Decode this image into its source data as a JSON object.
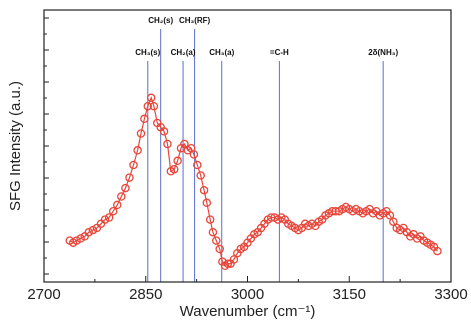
{
  "chart_data": {
    "type": "scatter",
    "xlabel": "Wavenumber (cm⁻¹)",
    "ylabel": "SFG Intensity (a.u.)",
    "xlim": [
      2700,
      3300
    ],
    "ylim": [
      0,
      1
    ],
    "x_ticks": [
      2700,
      2850,
      3000,
      3150,
      3300
    ],
    "grid": false,
    "colors": {
      "marker": "#e8463a",
      "line": "#e8463a",
      "guide": "#5b6fc9",
      "axis": "#222222"
    },
    "reference_lines": [
      {
        "label": "CH₃(s)",
        "x": 2853,
        "row": 2
      },
      {
        "label": "CH₂(s)",
        "x": 2872,
        "row": 1
      },
      {
        "label": "CH₂(a)",
        "x": 2905,
        "row": 2
      },
      {
        "label": "CH₃(RF)",
        "x": 2922,
        "row": 1
      },
      {
        "label": "CH₃(a)",
        "x": 2962,
        "row": 2
      },
      {
        "label": "=C-H",
        "x": 3047,
        "row": 2
      },
      {
        "label": "2δ(NH₃)",
        "x": 3200,
        "row": 2
      }
    ],
    "series": [
      {
        "x": [
          2738,
          2743,
          2748,
          2754,
          2760,
          2766,
          2772,
          2778,
          2784,
          2790,
          2796,
          2802,
          2808,
          2814,
          2820,
          2826,
          2832,
          2838,
          2843,
          2848,
          2853,
          2858,
          2862,
          2867,
          2872,
          2877,
          2882,
          2887,
          2892,
          2897,
          2902,
          2907,
          2912,
          2917,
          2921,
          2926,
          2931,
          2936,
          2940,
          2945,
          2949,
          2954,
          2959,
          2963,
          2967,
          2971,
          2975,
          2980,
          2985,
          2990,
          2995,
          3000,
          3005,
          3010,
          3015,
          3020,
          3025,
          3030,
          3035,
          3040,
          3045,
          3050,
          3055,
          3060,
          3065,
          3070,
          3075,
          3080,
          3085,
          3090,
          3095,
          3100,
          3105,
          3110,
          3115,
          3120,
          3125,
          3130,
          3135,
          3140,
          3145,
          3150,
          3155,
          3160,
          3165,
          3170,
          3175,
          3180,
          3185,
          3190,
          3195,
          3200,
          3205,
          3210,
          3215,
          3220,
          3225,
          3230,
          3235,
          3240,
          3245,
          3250,
          3255,
          3260,
          3265,
          3270,
          3275,
          3280
        ],
        "y": [
          0.14,
          0.13,
          0.14,
          0.15,
          0.16,
          0.18,
          0.19,
          0.2,
          0.22,
          0.24,
          0.25,
          0.28,
          0.31,
          0.35,
          0.39,
          0.44,
          0.5,
          0.57,
          0.65,
          0.72,
          0.78,
          0.82,
          0.78,
          0.7,
          0.68,
          0.66,
          0.6,
          0.47,
          0.48,
          0.52,
          0.58,
          0.6,
          0.57,
          0.58,
          0.55,
          0.5,
          0.45,
          0.38,
          0.32,
          0.24,
          0.18,
          0.14,
          0.1,
          0.04,
          0.02,
          0.03,
          0.03,
          0.05,
          0.08,
          0.1,
          0.11,
          0.13,
          0.15,
          0.17,
          0.18,
          0.2,
          0.22,
          0.24,
          0.25,
          0.25,
          0.24,
          0.25,
          0.24,
          0.22,
          0.21,
          0.2,
          0.19,
          0.2,
          0.22,
          0.21,
          0.22,
          0.21,
          0.23,
          0.24,
          0.26,
          0.27,
          0.28,
          0.28,
          0.28,
          0.29,
          0.3,
          0.29,
          0.28,
          0.29,
          0.28,
          0.27,
          0.28,
          0.29,
          0.27,
          0.28,
          0.26,
          0.27,
          0.28,
          0.26,
          0.23,
          0.2,
          0.19,
          0.2,
          0.18,
          0.16,
          0.17,
          0.15,
          0.16,
          0.14,
          0.13,
          0.12,
          0.11,
          0.09
        ]
      }
    ]
  }
}
